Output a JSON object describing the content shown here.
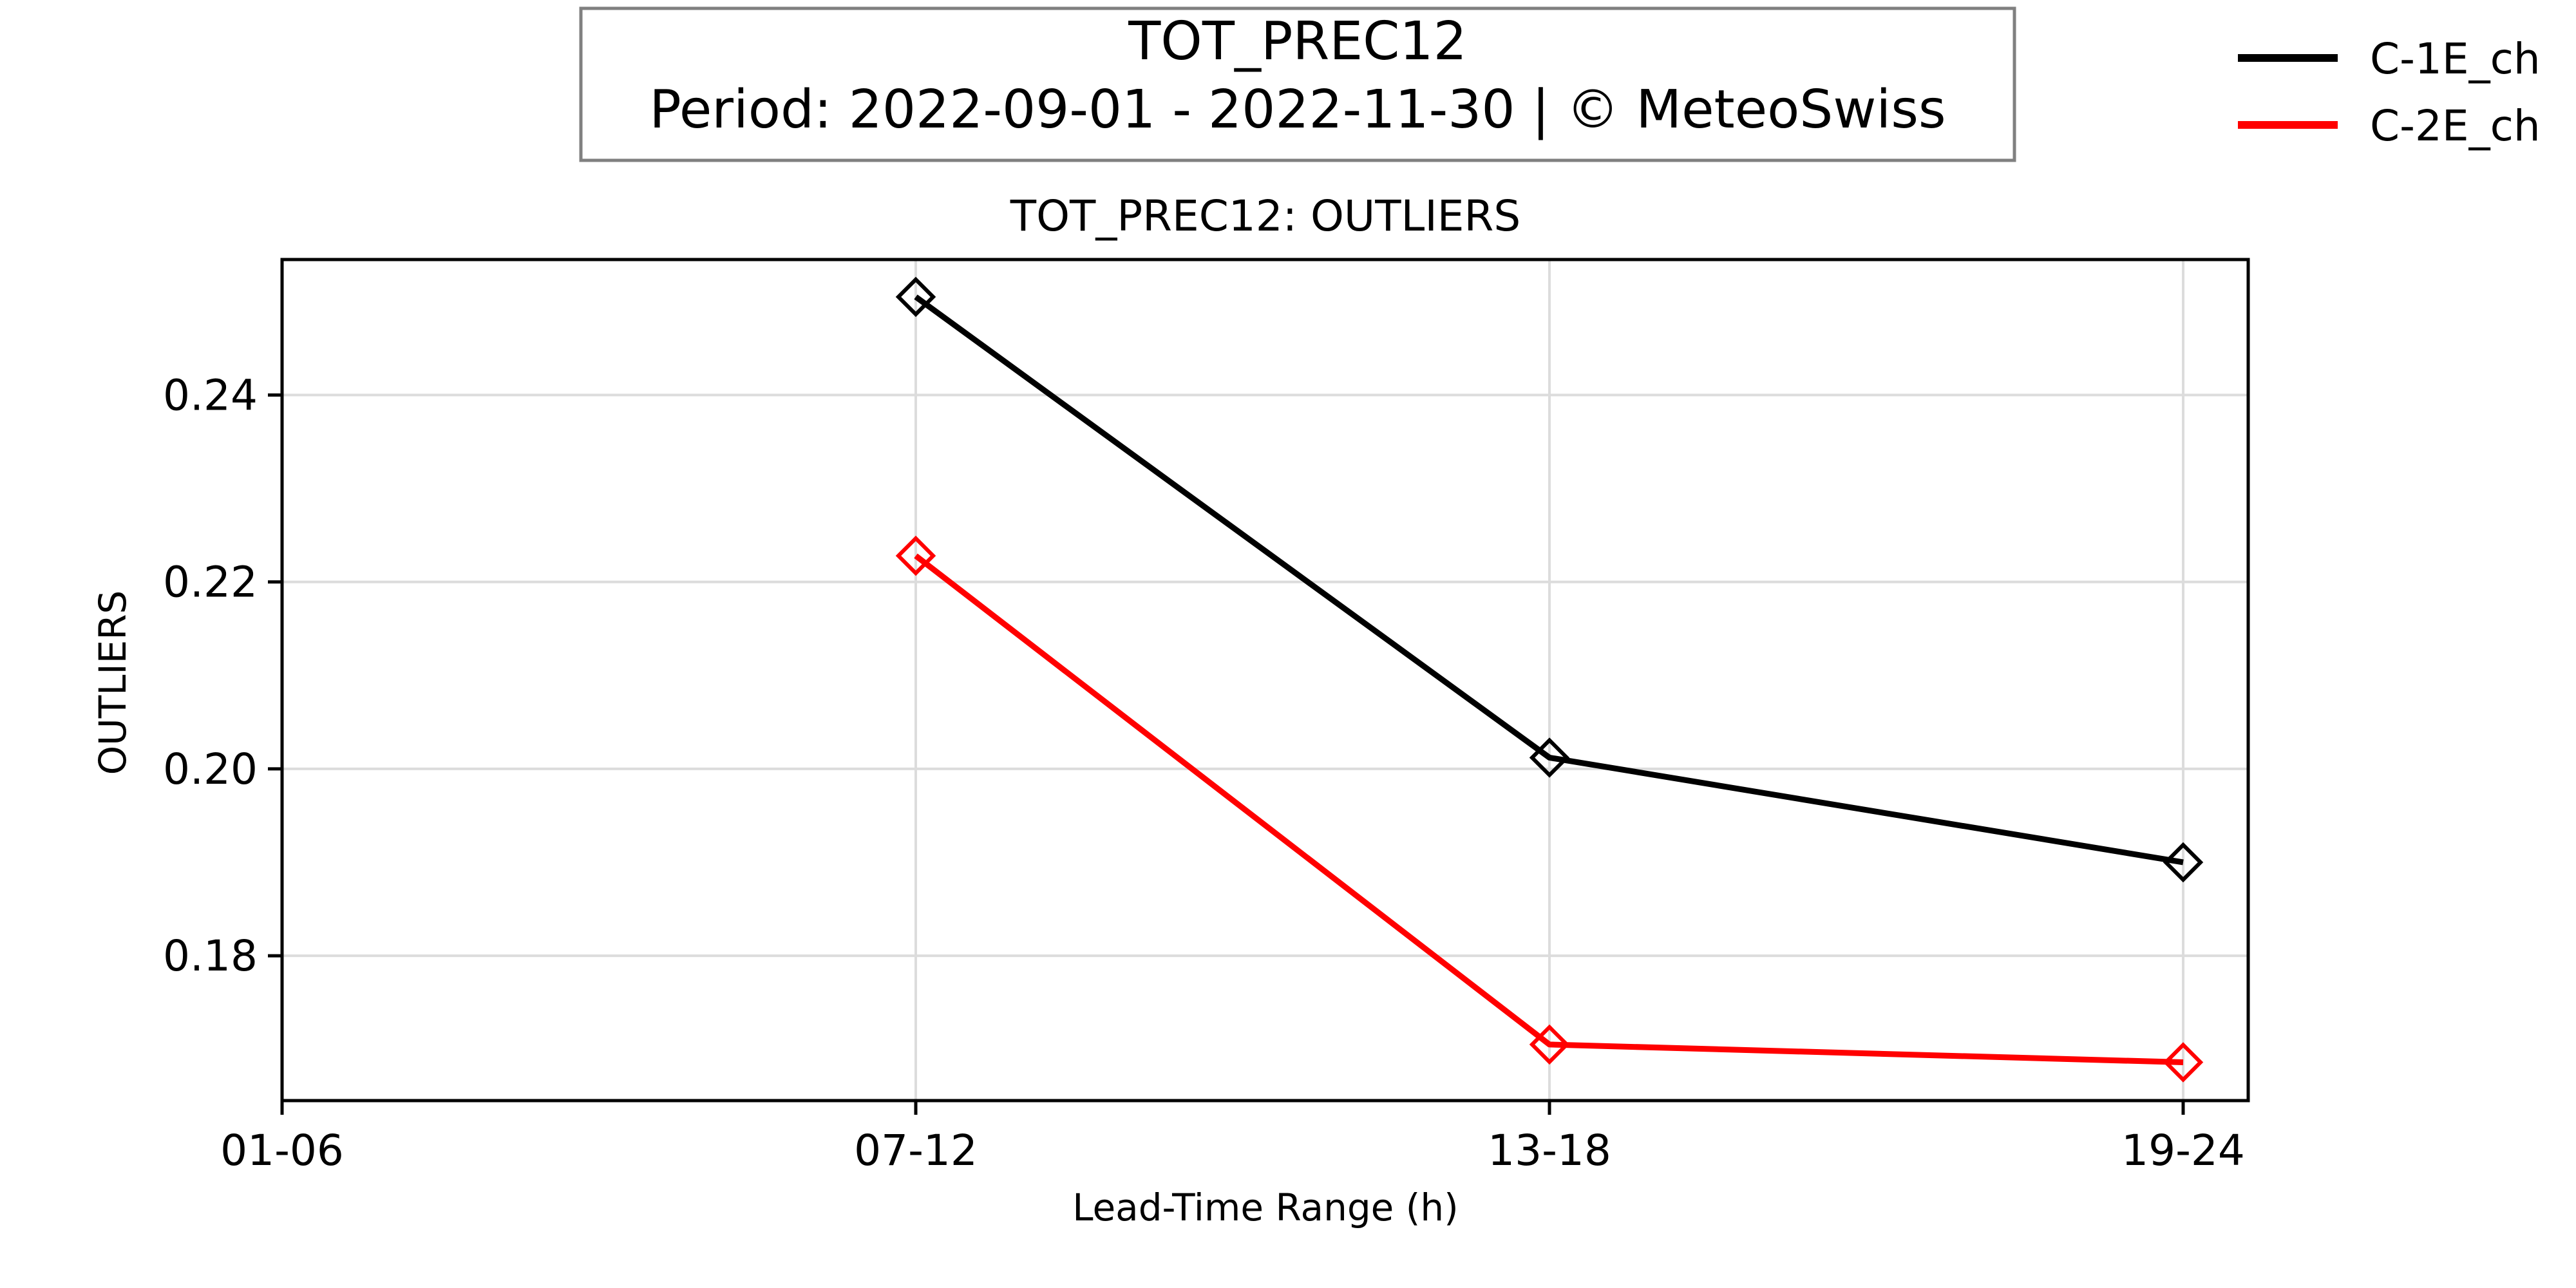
{
  "header": {
    "title": "TOT_PREC12",
    "subtitle": "Period: 2022-09-01 - 2022-11-30 | © MeteoSwiss"
  },
  "chart_data": {
    "type": "line",
    "title": "TOT_PREC12: OUTLIERS",
    "xlabel": "Lead-Time Range (h)",
    "ylabel": "OUTLIERS",
    "categories": [
      "01-06",
      "07-12",
      "13-18",
      "19-24"
    ],
    "yticks": [
      "0.18",
      "0.20",
      "0.22",
      "0.24"
    ],
    "ylim": [
      0.1645,
      0.2545
    ],
    "grid": true,
    "legend_position": "top-right",
    "marker": "diamond",
    "series": [
      {
        "name": "C-1E_ch",
        "color": "#000000",
        "values": [
          null,
          0.2505,
          0.2012,
          0.19
        ]
      },
      {
        "name": "C-2E_ch",
        "color": "#ff0000",
        "values": [
          null,
          0.2228,
          0.1705,
          0.1686
        ]
      }
    ]
  }
}
